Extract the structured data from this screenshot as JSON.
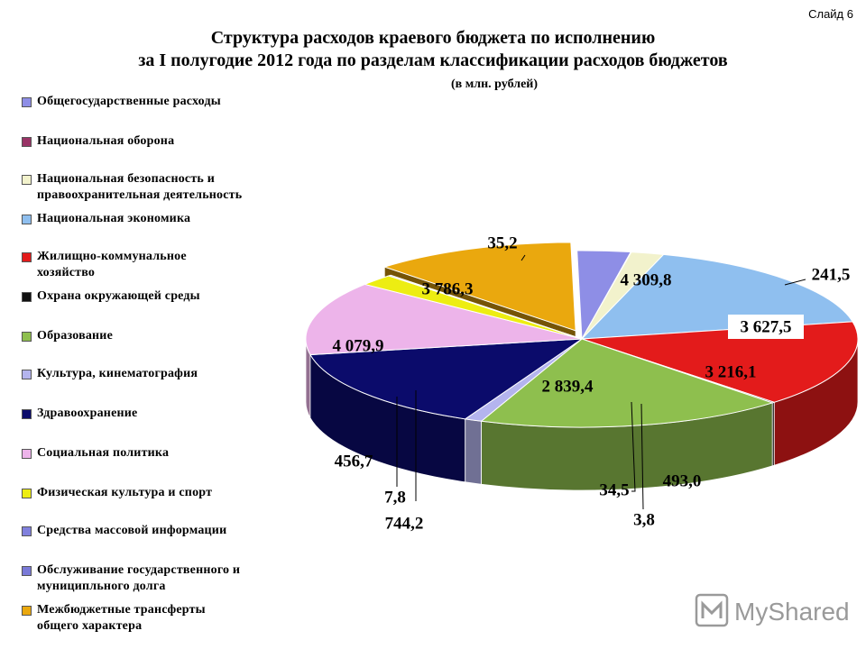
{
  "slide_label": "Слайд 6",
  "title_line1": "Структура расходов краевого бюджета по исполнению",
  "title_line2": "за I полугодие 2012 года по разделам классификации расходов бюджетов",
  "unit_note": "(в млн. рублей)",
  "watermark_text": "MyShared",
  "chart_data": {
    "type": "pie",
    "style": "3d-exploded",
    "legend_position": "left",
    "categories": [
      "Общегосударственные расходы",
      "Национальная оборона",
      "Национальная безопасность и правоохранительная деятельность",
      "Национальная экономика",
      "Жилищно-коммунальное хозяйство",
      "Охрана окружающей среды",
      "Образование",
      "Культура, кинематография",
      "Здравоохранение",
      "Социальная политика",
      "Физическая культура и спорт",
      "Средства массовой информации",
      "Обслуживание государственного и муниципального долга",
      "Межбюджетные трансферты общего характера"
    ],
    "legend_labels": [
      [
        "Общегосударственные расходы"
      ],
      [
        "Национальная оборона"
      ],
      [
        "Национальная безопасность и",
        "правоохранительная деятельность"
      ],
      [
        "Национальная экономика"
      ],
      [
        "Жилищно-коммунальное",
        "хозяйство"
      ],
      [
        "Охрана окружающей среды"
      ],
      [
        "Образование"
      ],
      [
        "Культура, кинематография"
      ],
      [
        "Здравоохранение"
      ],
      [
        "Социальная политика"
      ],
      [
        "Физическая культура и спорт"
      ],
      [
        "Средства массовой информации"
      ],
      [
        "Обслуживание государственного и",
        "муниципльного долга"
      ],
      [
        "Межбюджетные трансферты",
        "общего характера"
      ]
    ],
    "values": [
      744.2,
      7.8,
      456.7,
      4079.9,
      3786.3,
      35.2,
      4309.8,
      241.5,
      3627.5,
      3216.1,
      493.0,
      3.8,
      34.5,
      2839.4
    ],
    "value_labels": [
      "744,2",
      "7,8",
      "456,7",
      "4 079,9",
      "3 786,3",
      "35,2",
      "4 309,8",
      "241,5",
      "3 627,5",
      "3 216,1",
      "493,0",
      "3,8",
      "34,5",
      "2 839,4"
    ],
    "colors": [
      "#8e8ee6",
      "#993366",
      "#f2f2cc",
      "#8fbfef",
      "#e31b1b",
      "#111111",
      "#8ebf4e",
      "#b4b4ee",
      "#0b0b6b",
      "#edb4ea",
      "#eded12",
      "#8080dd",
      "#7a7ad8",
      "#eaa80e"
    ]
  }
}
